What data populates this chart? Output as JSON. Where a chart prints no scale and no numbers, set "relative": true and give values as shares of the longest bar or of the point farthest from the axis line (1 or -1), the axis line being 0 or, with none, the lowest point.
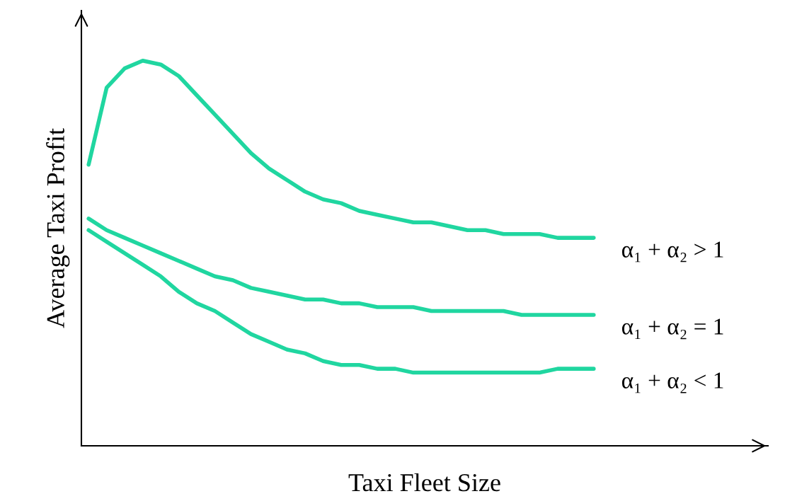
{
  "chart_data": {
    "type": "line",
    "relative": true,
    "xlabel": "Taxi Fleet Size",
    "ylabel": "Average Taxi Profit",
    "categories": [
      null,
      null,
      null,
      null,
      null,
      null,
      null,
      null,
      null,
      null,
      null,
      null,
      null,
      null,
      null,
      null,
      null,
      null,
      null,
      null,
      null,
      null,
      null,
      null,
      null,
      null,
      null,
      null,
      null
    ],
    "series": [
      {
        "name": "α₁ + α₂ > 1",
        "color": "#20d6a0",
        "values": [
          0.73,
          0.93,
          0.98,
          1.0,
          0.99,
          0.96,
          0.91,
          0.86,
          0.81,
          0.76,
          0.72,
          0.69,
          0.66,
          0.64,
          0.63,
          0.61,
          0.6,
          0.59,
          0.58,
          0.58,
          0.57,
          0.56,
          0.56,
          0.55,
          0.55,
          0.55,
          0.54,
          0.54,
          0.54
        ]
      },
      {
        "name": "α₁ + α₂ = 1",
        "color": "#20d6a0",
        "values": [
          0.59,
          0.56,
          0.54,
          0.52,
          0.5,
          0.48,
          0.46,
          0.44,
          0.43,
          0.41,
          0.4,
          0.39,
          0.38,
          0.38,
          0.37,
          0.37,
          0.36,
          0.36,
          0.36,
          0.35,
          0.35,
          0.35,
          0.35,
          0.35,
          0.34,
          0.34,
          0.34,
          0.34,
          0.34
        ]
      },
      {
        "name": "α₁ + α₂ < 1",
        "color": "#20d6a0",
        "values": [
          0.56,
          0.53,
          0.5,
          0.47,
          0.44,
          0.4,
          0.37,
          0.35,
          0.32,
          0.29,
          0.27,
          0.25,
          0.24,
          0.22,
          0.21,
          0.21,
          0.2,
          0.2,
          0.19,
          0.19,
          0.19,
          0.19,
          0.19,
          0.19,
          0.19,
          0.19,
          0.2,
          0.2,
          0.2
        ]
      }
    ],
    "legend": false,
    "marker": "none",
    "line_style": "solid"
  }
}
